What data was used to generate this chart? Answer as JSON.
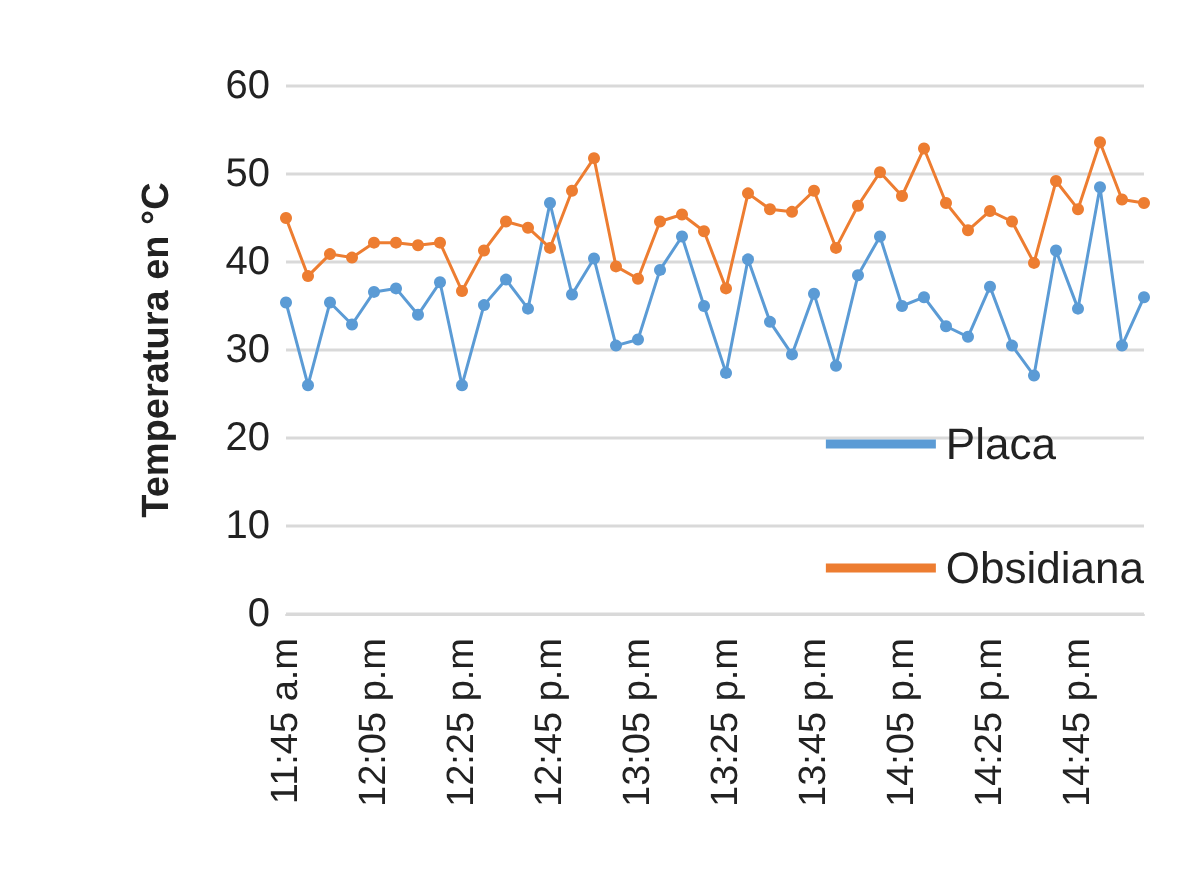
{
  "chart_data": {
    "type": "line",
    "ylabel": "Temperatura en °C",
    "categories": [
      "11:45 a.m",
      null,
      null,
      null,
      "12:05 p.m",
      null,
      null,
      null,
      "12:25 p.m",
      null,
      null,
      null,
      "12:45 p.m",
      null,
      null,
      null,
      "13:05 p.m",
      null,
      null,
      null,
      "13:25 p.m",
      null,
      null,
      null,
      "13:45 p.m",
      null,
      null,
      null,
      "14:05 p.m",
      null,
      null,
      null,
      "14:25 p.m",
      null,
      null,
      null,
      "14:45 p.m",
      null,
      null,
      null
    ],
    "series": [
      {
        "name": "Placa",
        "color": "#5b9bd5",
        "values": [
          35.4,
          26.0,
          35.4,
          32.9,
          36.6,
          37.0,
          34.0,
          37.7,
          26.0,
          35.1,
          38.0,
          34.7,
          46.7,
          36.3,
          40.4,
          30.5,
          31.2,
          39.1,
          42.9,
          35.0,
          27.4,
          40.3,
          33.2,
          29.5,
          36.4,
          28.2,
          38.5,
          42.9,
          35.0,
          36.0,
          32.7,
          31.5,
          37.2,
          30.5,
          27.1,
          41.3,
          34.7,
          48.5,
          30.5,
          36.0
        ]
      },
      {
        "name": "Obsidiana",
        "color": "#ed7d31",
        "values": [
          45.0,
          38.4,
          40.9,
          40.5,
          42.2,
          42.2,
          41.9,
          42.2,
          36.7,
          41.3,
          44.6,
          43.9,
          41.6,
          48.1,
          51.8,
          39.5,
          38.1,
          44.6,
          45.4,
          43.5,
          37.0,
          47.8,
          46.0,
          45.7,
          48.1,
          41.6,
          46.4,
          50.2,
          47.5,
          52.9,
          46.7,
          43.6,
          45.8,
          44.6,
          39.9,
          49.2,
          46.0,
          53.6,
          47.1,
          46.7
        ]
      }
    ],
    "ylim": [
      0,
      60
    ],
    "yticks": [
      0,
      10,
      20,
      30,
      40,
      50,
      60
    ],
    "grid": "y",
    "legend": "bottom right",
    "marker": "circle",
    "line_style": "solid"
  }
}
